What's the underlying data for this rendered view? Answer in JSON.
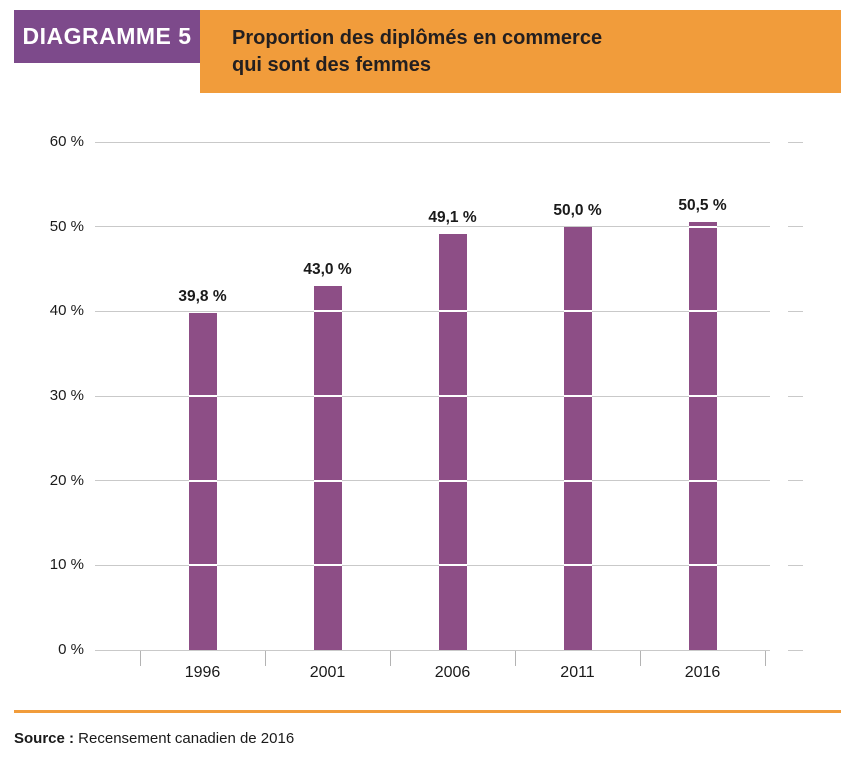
{
  "header": {
    "tag": "DIAGRAMME 5",
    "title_line1": "Proportion des diplômés en commerce",
    "title_line2": "qui sont des femmes"
  },
  "chart_data": {
    "type": "bar",
    "title": "Proportion des diplômés en commerce qui sont des femmes",
    "categories": [
      "1996",
      "2001",
      "2006",
      "2011",
      "2016"
    ],
    "values": [
      39.8,
      43.0,
      49.1,
      50.0,
      50.5
    ],
    "value_labels": [
      "39,8 %",
      "43,0 %",
      "49,1 %",
      "50,0 %",
      "50,5 %"
    ],
    "y_ticks": [
      "0 %",
      "10 %",
      "20 %",
      "30 %",
      "40 %",
      "50 %",
      "60 %"
    ],
    "y_tick_values": [
      0,
      10,
      20,
      30,
      40,
      50,
      60
    ],
    "ylim": [
      0,
      60
    ],
    "xlabel": "",
    "ylabel": "",
    "grid": true,
    "legend": "none",
    "bar_color": "#8d4e86",
    "gridline_color": "#c9c9c9"
  },
  "footer": {
    "source_label": "Source :",
    "source_text": " Recensement canadien de 2016"
  },
  "colors": {
    "header_purple": "#7d4a8b",
    "band_orange": "#f19c3b",
    "bar_purple": "#8d4e86"
  }
}
